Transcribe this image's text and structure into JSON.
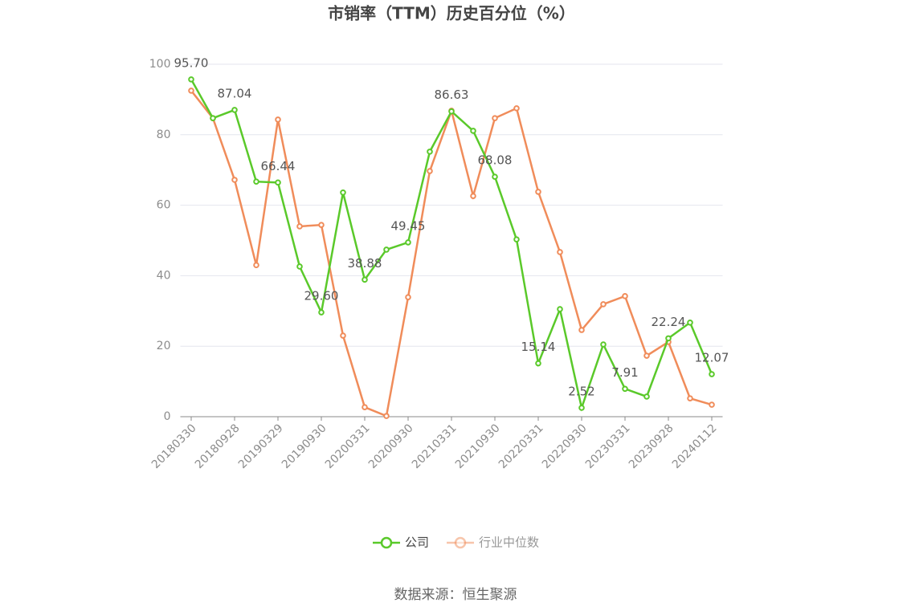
{
  "chart_data": {
    "type": "line",
    "title": "市销率（TTM）历史百分位（%）",
    "source": "数据来源：恒生聚源",
    "categories": [
      "20180330",
      null,
      "20180928",
      null,
      "20190329",
      null,
      "20190930",
      null,
      "20200331",
      null,
      "20200930",
      null,
      "20210331",
      null,
      "20210930",
      null,
      "20220331",
      null,
      "20220930",
      null,
      "20230331",
      null,
      "20230928",
      null,
      "20240112"
    ],
    "series": [
      {
        "name": "公司",
        "color": "#5ac92a",
        "values": [
          95.7,
          84.7,
          87.04,
          66.7,
          66.44,
          42.6,
          29.6,
          63.6,
          38.88,
          47.4,
          49.45,
          75.2,
          86.63,
          81.1,
          68.08,
          50.3,
          15.14,
          30.5,
          2.52,
          20.5,
          7.91,
          5.7,
          22.24,
          26.7,
          12.07
        ],
        "value_labels": [
          "95.70",
          null,
          "87.04",
          null,
          "66.44",
          null,
          "29.60",
          null,
          "38.88",
          null,
          "49.45",
          null,
          "86.63",
          null,
          "68.08",
          null,
          "15.14",
          null,
          "2.52",
          null,
          "7.91",
          null,
          "22.24",
          null,
          "12.07"
        ]
      },
      {
        "name": "行业中位数",
        "color": "#f08c5a",
        "values": [
          92.5,
          84.7,
          67.2,
          43.0,
          84.3,
          54.0,
          54.4,
          23.0,
          2.7,
          0.2,
          33.9,
          69.7,
          86.8,
          62.6,
          84.7,
          87.5,
          63.8,
          46.7,
          24.6,
          31.9,
          34.2,
          17.3,
          21.2,
          5.2,
          3.4
        ]
      }
    ],
    "ylim": [
      0,
      100
    ],
    "yticks": [
      0,
      20,
      40,
      60,
      80,
      100
    ],
    "grid": true
  }
}
